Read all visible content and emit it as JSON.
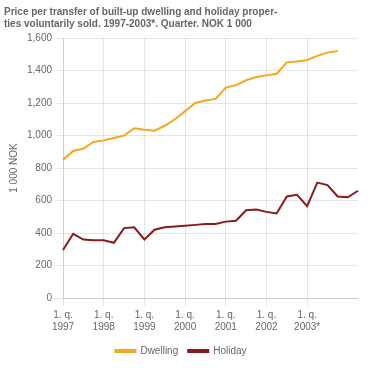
{
  "chart_data": {
    "type": "line",
    "title": "Price per transfer of built-up dwelling and holiday proper-\nties voluntarily sold. 1997-2003*. Quarter. NOK 1 000",
    "ylabel": "1 000 NOK",
    "categories": [
      "1. q.\n1997",
      null,
      null,
      null,
      "1. q.\n1998",
      null,
      null,
      null,
      "1. q.\n1999",
      null,
      null,
      null,
      "1. q.\n2000",
      null,
      null,
      null,
      "1. q.\n2001",
      null,
      null,
      null,
      "1. q.\n2002",
      null,
      null,
      null,
      "1. q.\n2003*",
      null,
      null,
      null,
      null,
      null
    ],
    "series": [
      {
        "name": "Dwelling",
        "color": "#F5A623",
        "values": [
          850,
          905,
          920,
          960,
          970,
          985,
          1000,
          1045,
          1035,
          1030,
          1060,
          1100,
          1150,
          1200,
          1215,
          1225,
          1295,
          1310,
          1340,
          1360,
          1370,
          1380,
          1450,
          1455,
          1465,
          1490,
          1510,
          1520,
          null,
          null
        ]
      },
      {
        "name": "Holiday",
        "color": "#8B1A1A",
        "values": [
          295,
          395,
          360,
          355,
          355,
          340,
          430,
          435,
          360,
          420,
          435,
          440,
          445,
          450,
          455,
          455,
          470,
          475,
          540,
          545,
          530,
          520,
          625,
          635,
          565,
          710,
          695,
          625,
          620,
          660
        ]
      }
    ],
    "ylim": [
      0,
      1600
    ],
    "yticks": [
      0,
      200,
      400,
      600,
      800,
      1000,
      1200,
      1400,
      1600
    ],
    "grid": true,
    "legend": "bottom"
  }
}
